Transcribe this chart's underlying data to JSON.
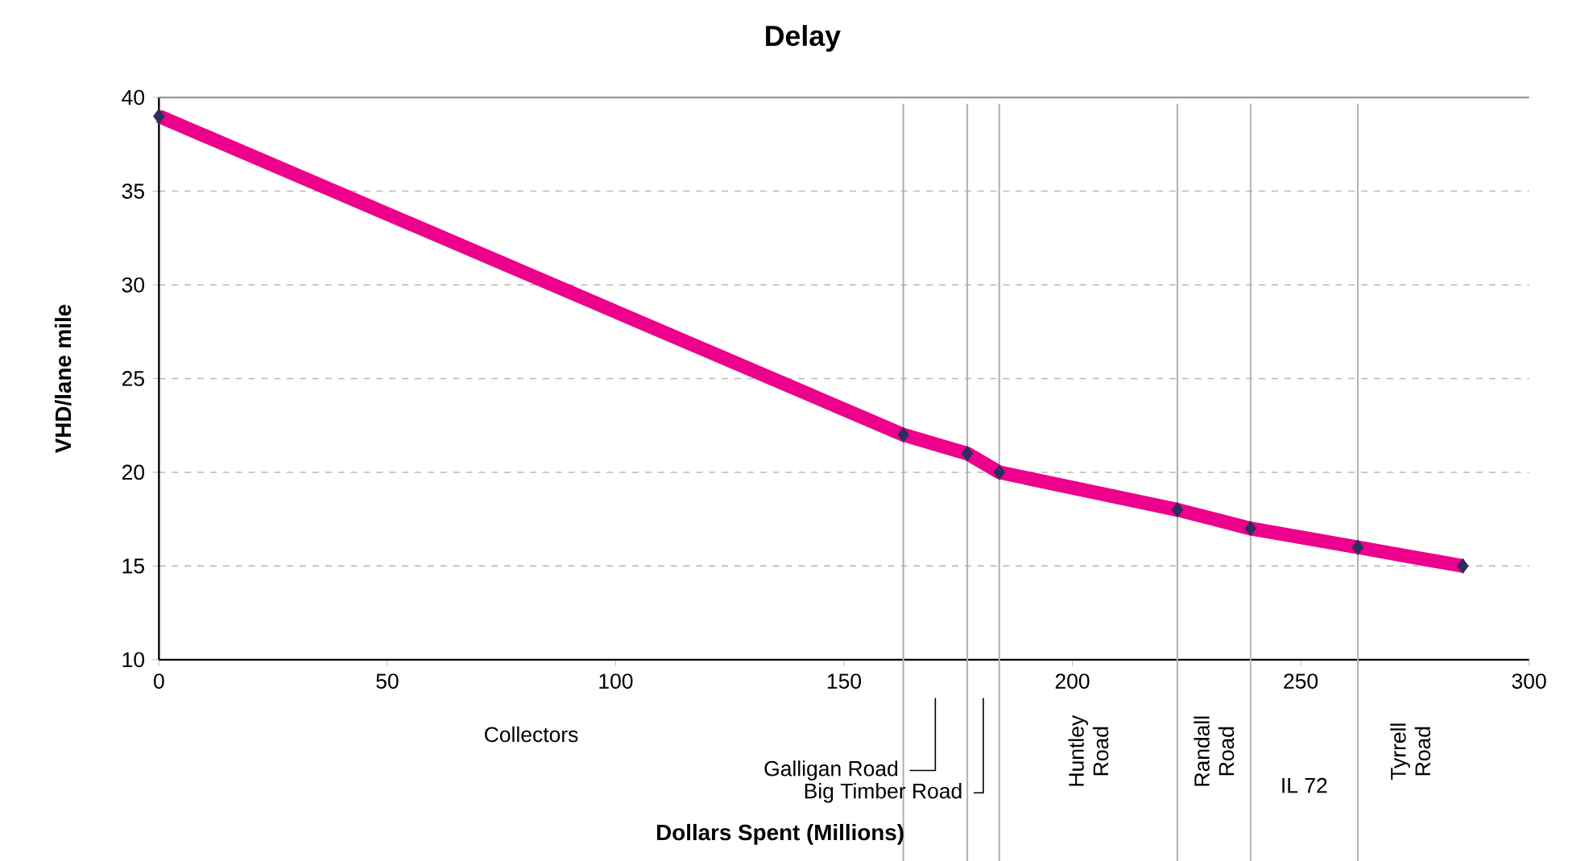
{
  "chart_data": {
    "type": "line",
    "title": "Delay",
    "ylabel": "VHD/lane mile",
    "x": [
      0,
      163,
      177,
      184,
      223,
      239,
      262.5,
      285.5
    ],
    "values": [
      39,
      22,
      21,
      20,
      18,
      17,
      16,
      15
    ],
    "color": "#ec008c",
    "marker": "diamond",
    "line_style": "solid",
    "grid": "y",
    "xlim": [
      0,
      300
    ],
    "xticks": [
      0,
      50,
      100,
      150,
      200,
      250,
      300
    ],
    "ylim": [
      10,
      40
    ],
    "yticks": [
      10,
      15,
      20,
      25,
      30,
      35,
      40
    ],
    "ref_lines": [
      {
        "axis": "x",
        "value": 163
      },
      {
        "axis": "x",
        "value": 177
      },
      {
        "axis": "x",
        "value": 184
      },
      {
        "axis": "x",
        "value": 223
      },
      {
        "axis": "x",
        "value": 239
      },
      {
        "axis": "x",
        "value": 262.5
      }
    ],
    "annotations": [
      "Collectors",
      "Galligan Road",
      "Big Timber Road",
      "Huntley Road",
      "Randall Road",
      "IL 72",
      "Tyrrell Road",
      "Dollars Spent (Millions)"
    ]
  }
}
